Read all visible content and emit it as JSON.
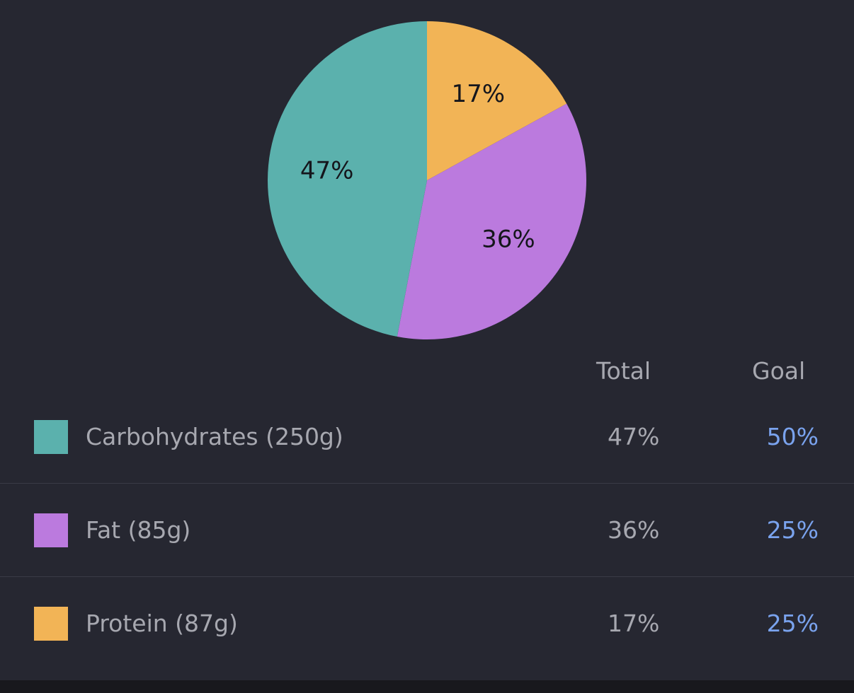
{
  "chart_data": {
    "type": "pie",
    "slices": [
      {
        "name": "Protein",
        "value": 17,
        "label": "17%",
        "color": "#f2b456"
      },
      {
        "name": "Fat",
        "value": 36,
        "label": "36%",
        "color": "#bb7ade"
      },
      {
        "name": "Carbohydrates",
        "value": 47,
        "label": "47%",
        "color": "#5bb1ad"
      }
    ],
    "start": "12 o'clock",
    "direction": "clockwise"
  },
  "table": {
    "headers": {
      "total": "Total",
      "goal": "Goal"
    },
    "rows": [
      {
        "label": "Carbohydrates (250g)",
        "total": "47%",
        "goal": "50%",
        "color": "#5bb1ad"
      },
      {
        "label": "Fat (85g)",
        "total": "36%",
        "goal": "25%",
        "color": "#bb7ade"
      },
      {
        "label": "Protein (87g)",
        "total": "17%",
        "goal": "25%",
        "color": "#f2b456"
      }
    ]
  },
  "theme": {
    "background": "#262731",
    "text_muted": "#a7a8b0",
    "goal_accent": "#7aa3ee"
  }
}
